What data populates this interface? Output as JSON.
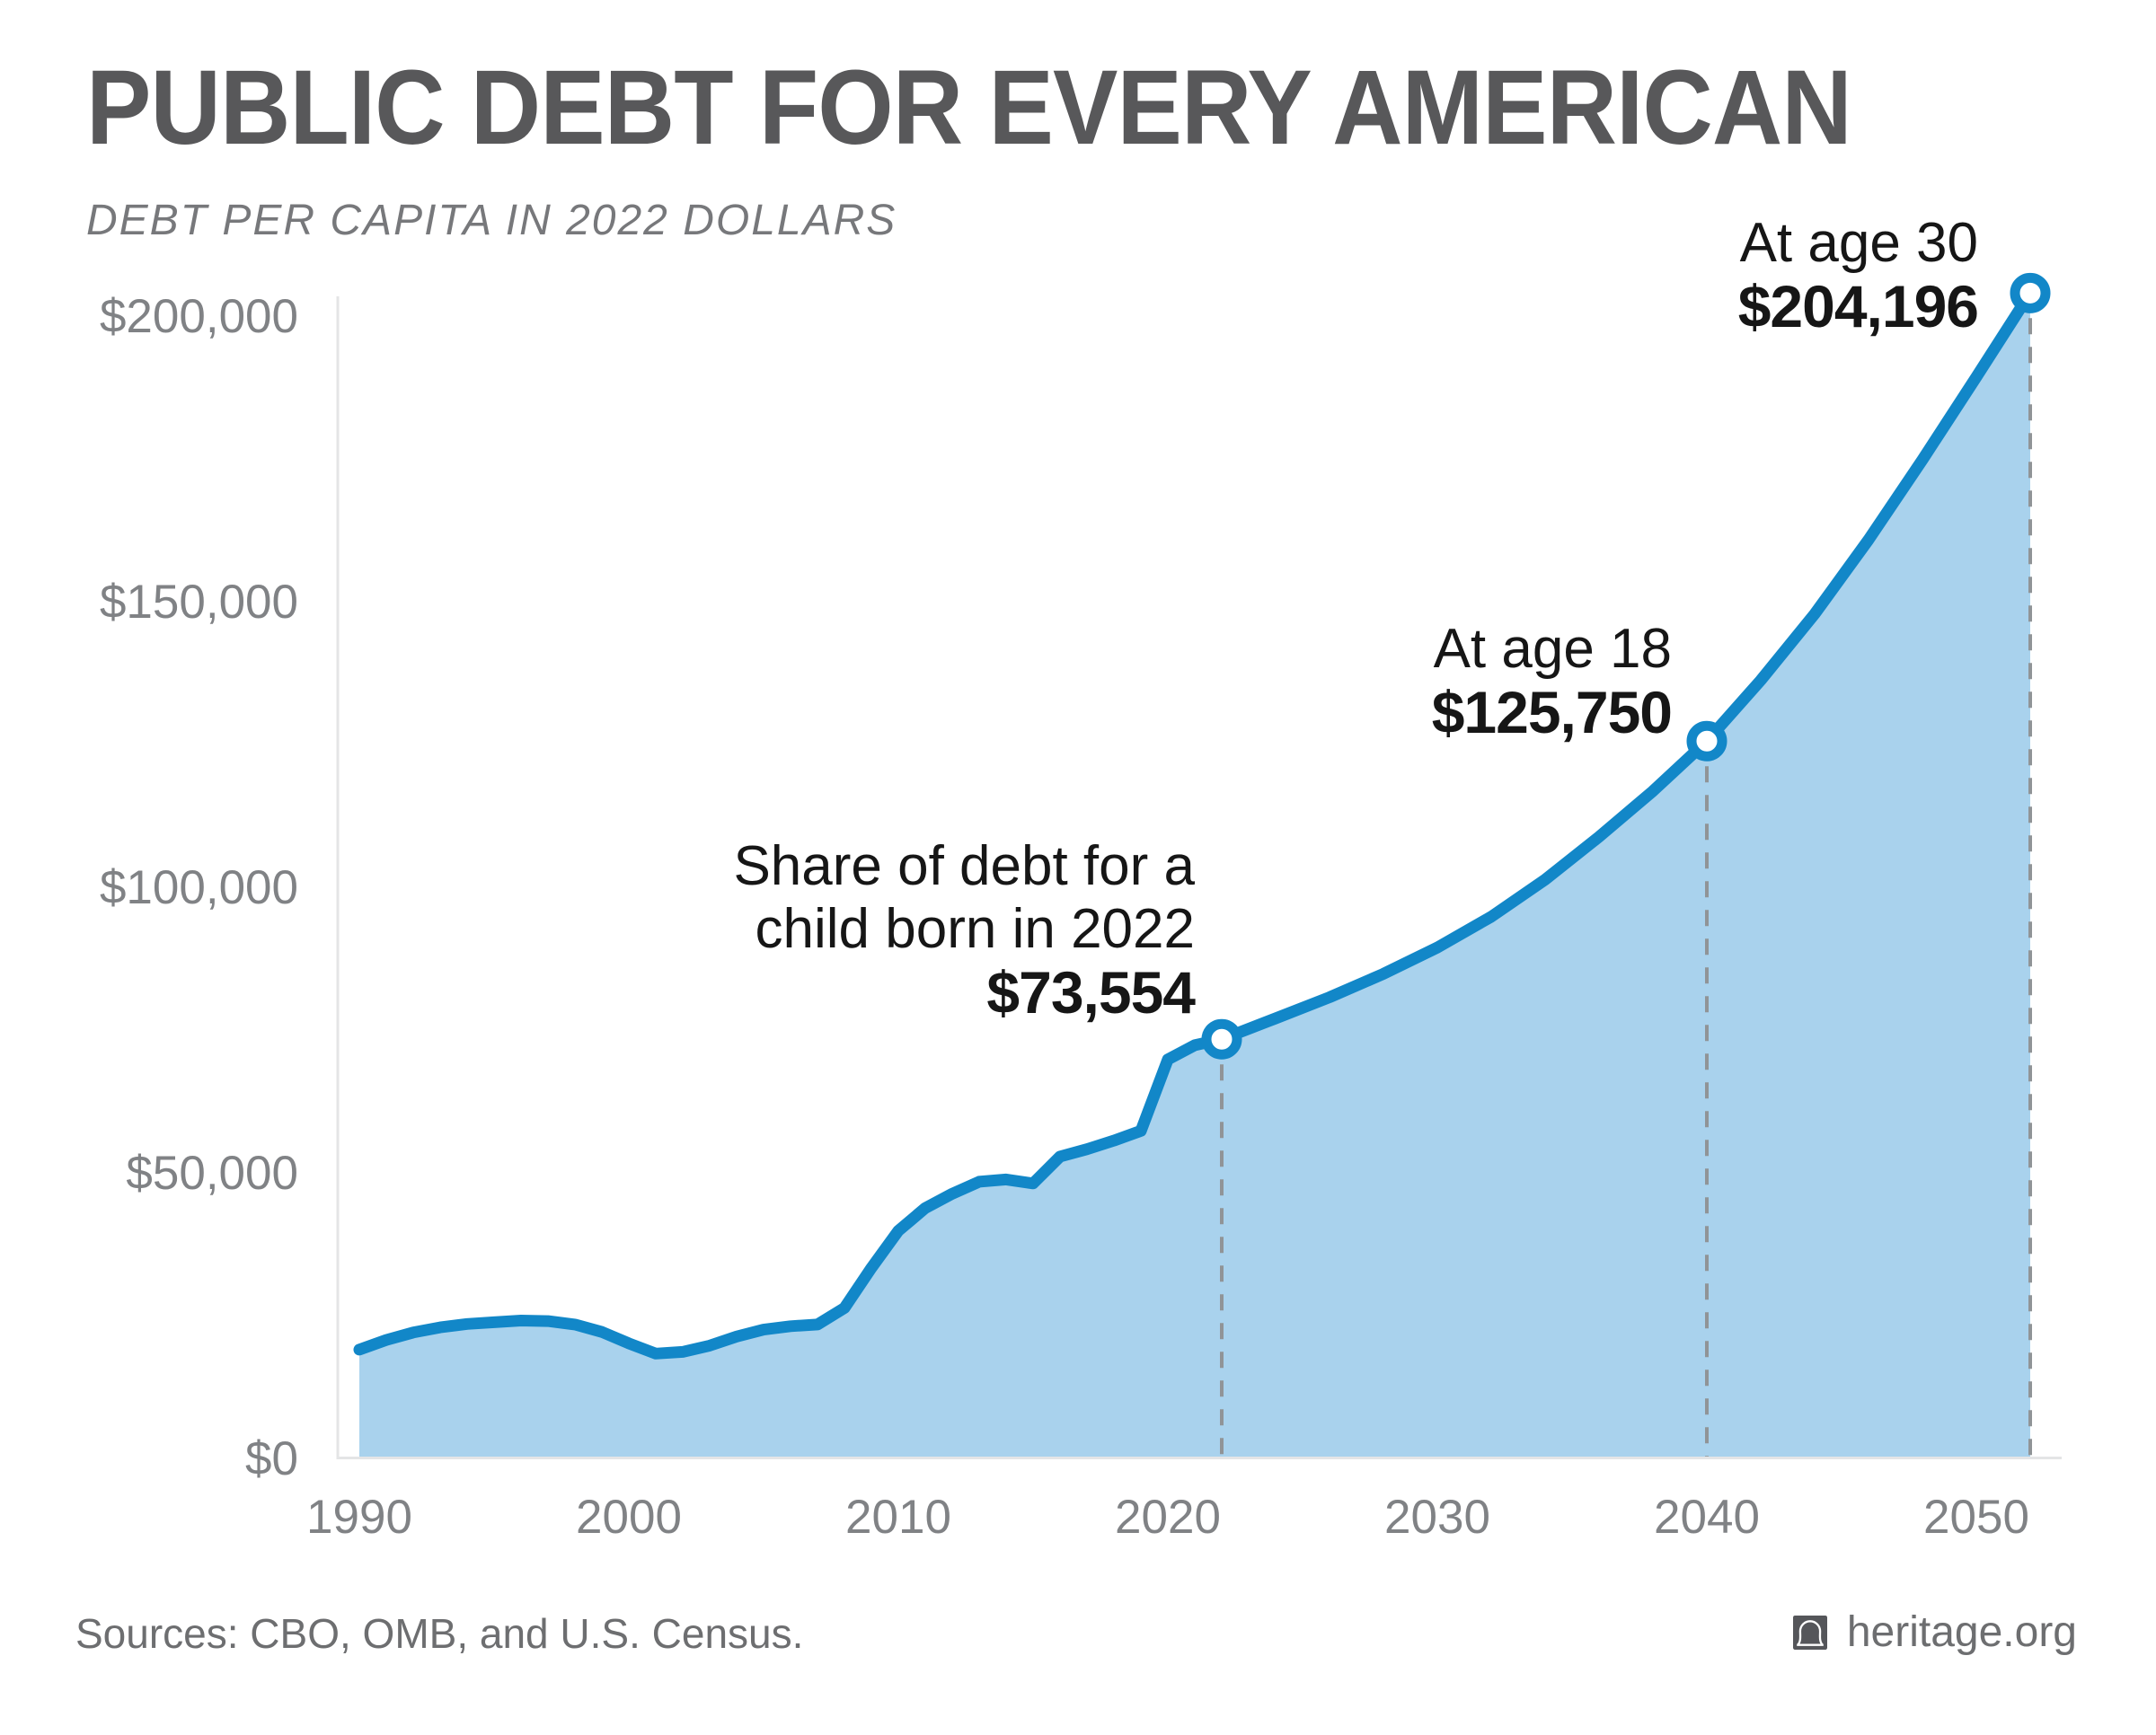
{
  "header": {
    "title": "PUBLIC DEBT FOR EVERY AMERICAN",
    "subtitle": "DEBT PER CAPITA IN 2022 DOLLARS"
  },
  "footer": {
    "sources": "Sources: CBO, OMB, and U.S. Census.",
    "brand": "heritage.org",
    "brand_icon": "liberty-bell-icon"
  },
  "colors": {
    "line": "#1287c8",
    "area": "#a9d2ed",
    "dashed": "#909497",
    "axis": "#e4e5e6",
    "tick_text": "#808285",
    "title_text": "#58585a",
    "subtitle_text": "#77787b",
    "annotation_text": "#161616",
    "footer_text": "#6d6e70",
    "logo_bg": "#55565a"
  },
  "chart_data": {
    "type": "area",
    "title": "PUBLIC DEBT FOR EVERY AMERICAN",
    "subtitle": "DEBT PER CAPITA IN 2022 DOLLARS",
    "xlabel": "",
    "ylabel": "Debt per capita (2022 dollars)",
    "grid": false,
    "legend": null,
    "x_domain": [
      1990,
      2052
    ],
    "y_domain": [
      0,
      200000
    ],
    "x_ticks": [
      1990,
      2000,
      2010,
      2020,
      2030,
      2040,
      2050
    ],
    "y_ticks": [
      {
        "label": "$0",
        "value": 0
      },
      {
        "label": "$50,000",
        "value": 50000
      },
      {
        "label": "$100,000",
        "value": 100000
      },
      {
        "label": "$150,000",
        "value": 150000
      },
      {
        "label": "$200,000",
        "value": 200000
      }
    ],
    "series": [
      [
        1990,
        19200
      ],
      [
        1991,
        20900
      ],
      [
        1992,
        22200
      ],
      [
        1993,
        23100
      ],
      [
        1994,
        23700
      ],
      [
        1995,
        24000
      ],
      [
        1996,
        24300
      ],
      [
        1997,
        24200
      ],
      [
        1998,
        23600
      ],
      [
        1999,
        22300
      ],
      [
        2000,
        20300
      ],
      [
        2001,
        18500
      ],
      [
        2002,
        18800
      ],
      [
        2003,
        19900
      ],
      [
        2004,
        21500
      ],
      [
        2005,
        22700
      ],
      [
        2006,
        23300
      ],
      [
        2007,
        23600
      ],
      [
        2008,
        26500
      ],
      [
        2009,
        33500
      ],
      [
        2010,
        40000
      ],
      [
        2011,
        44000
      ],
      [
        2012,
        46500
      ],
      [
        2013,
        48600
      ],
      [
        2014,
        49000
      ],
      [
        2015,
        48300
      ],
      [
        2016,
        53000
      ],
      [
        2017,
        54300
      ],
      [
        2018,
        55800
      ],
      [
        2019,
        57500
      ],
      [
        2020,
        70000
      ],
      [
        2021,
        72500
      ],
      [
        2022,
        73554
      ],
      [
        2024,
        77200
      ],
      [
        2026,
        80900
      ],
      [
        2028,
        85000
      ],
      [
        2030,
        89600
      ],
      [
        2032,
        95000
      ],
      [
        2034,
        101500
      ],
      [
        2036,
        109000
      ],
      [
        2038,
        117000
      ],
      [
        2040,
        125750
      ],
      [
        2042,
        136400
      ],
      [
        2044,
        148000
      ],
      [
        2046,
        161000
      ],
      [
        2048,
        175000
      ],
      [
        2050,
        189500
      ],
      [
        2052,
        204196
      ]
    ],
    "markers": [
      {
        "year": 2022,
        "value": 73554,
        "value_label": "$73,554",
        "label_lines": [
          "Share of debt for a",
          "child born in 2022"
        ]
      },
      {
        "year": 2040,
        "value": 125750,
        "value_label": "$125,750",
        "label_lines": [
          "At age 18"
        ]
      },
      {
        "year": 2052,
        "value": 204196,
        "value_label": "$204,196",
        "label_lines": [
          "At age 30"
        ]
      }
    ]
  }
}
